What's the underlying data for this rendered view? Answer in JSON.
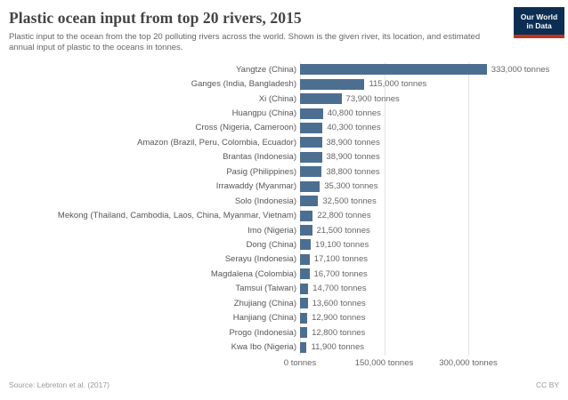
{
  "header": {
    "title": "Plastic ocean input from top 20 rivers, 2015",
    "subtitle": "Plastic input to the ocean from the top 20 polluting rivers across the world. Shown is the given river, its location, and estimated annual input of plastic to the oceans in tonnes.",
    "logo": {
      "line1": "Our World",
      "line2": "in Data",
      "background_color": "#0d2e53",
      "stripe_color": "#c0341e"
    }
  },
  "chart_data": {
    "type": "bar",
    "orientation": "horizontal",
    "title": "Plastic ocean input from top 20 rivers, 2015",
    "xlabel": "",
    "ylabel": "",
    "grid": true,
    "xlim": [
      0,
      350000
    ],
    "bar_color": "#4C6E91",
    "categories": [
      "Yangtze (China)",
      "Ganges (India, Bangladesh)",
      "Xi (China)",
      "Huangpu (China)",
      "Cross (Nigeria, Cameroon)",
      "Amazon (Brazil, Peru, Colombia, Ecuador)",
      "Brantas (Indonesia)",
      "Pasig (Philippines)",
      "Irrawaddy (Myanmar)",
      "Solo (Indonesia)",
      "Mekong (Thailand, Cambodia, Laos, China, Myanmar, Vietnam)",
      "Imo (Nigeria)",
      "Dong (China)",
      "Serayu (Indonesia)",
      "Magdalena (Colombia)",
      "Tamsui (Taiwan)",
      "Zhujiang (China)",
      "Hanjiang (China)",
      "Progo (Indonesia)",
      "Kwa Ibo (Nigeria)"
    ],
    "values": [
      333000,
      115000,
      73900,
      40800,
      40300,
      38900,
      38900,
      38800,
      35300,
      32500,
      22800,
      21500,
      19100,
      17100,
      16700,
      14700,
      13600,
      12900,
      12800,
      11900
    ],
    "value_labels": [
      "333,000 tonnes",
      "115,000 tonnes",
      "73,900 tonnes",
      "40,800 tonnes",
      "40,300 tonnes",
      "38,900 tonnes",
      "38,900 tonnes",
      "38,800 tonnes",
      "35,300 tonnes",
      "32,500 tonnes",
      "22,800 tonnes",
      "21,500 tonnes",
      "19,100 tonnes",
      "17,100 tonnes",
      "16,700 tonnes",
      "14,700 tonnes",
      "13,600 tonnes",
      "12,900 tonnes",
      "12,800 tonnes",
      "11,900 tonnes"
    ],
    "tick_values": [
      0,
      150000,
      300000
    ],
    "tick_labels": [
      "0 tonnes",
      "150,000 tonnes",
      "300,000 tonnes"
    ],
    "legend": null
  },
  "footer": {
    "source": "Source: Lebreton et al. (2017)",
    "license": "CC BY"
  }
}
